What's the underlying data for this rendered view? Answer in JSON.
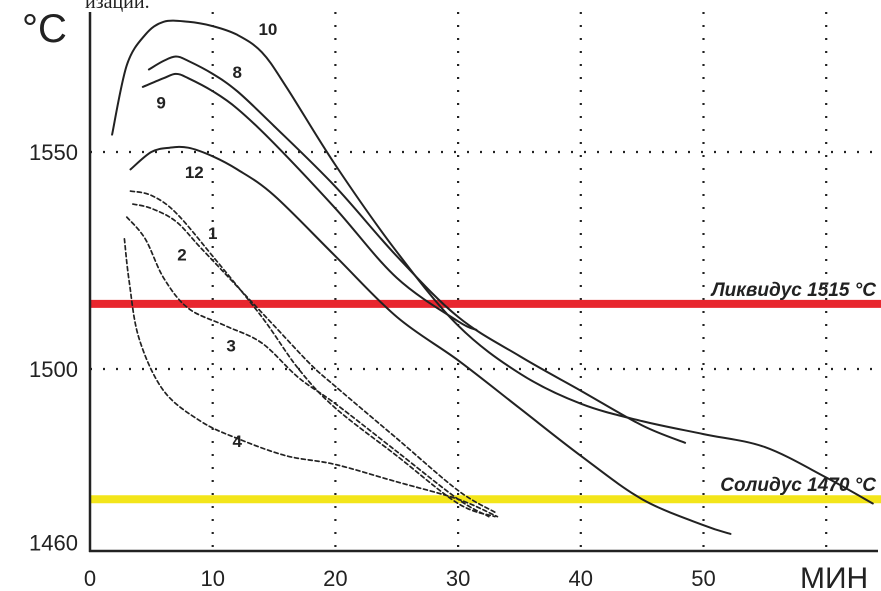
{
  "top_fragment": "изации.",
  "chart_data": {
    "type": "line",
    "title": "",
    "xlabel": "МИН",
    "ylabel": "°C",
    "xlim": [
      0,
      64
    ],
    "ylim": [
      1455,
      1585
    ],
    "grid": true,
    "x_ticks": [
      0,
      10,
      20,
      30,
      40,
      50
    ],
    "x_tick_labels": [
      "0",
      "10",
      "20",
      "30",
      "40",
      "50"
    ],
    "y_ticks": [
      1460,
      1500,
      1550
    ],
    "y_tick_labels": [
      "1460",
      "1500",
      "1550"
    ],
    "x_grid": [
      10,
      20,
      30,
      40,
      50,
      60
    ],
    "y_grid": [
      1500,
      1550
    ],
    "reference_lines": [
      {
        "label": "Ликвидус 1515 °C",
        "y": 1515,
        "color": "#e8262e"
      },
      {
        "label": "Солидус 1470 °C",
        "y": 1470,
        "color": "#f3e51a"
      }
    ],
    "series": [
      {
        "name": "10",
        "style": "solid",
        "x": [
          1.8,
          3,
          4.5,
          6,
          8,
          10,
          12,
          14,
          16,
          20,
          25,
          30,
          35,
          40,
          45,
          50,
          55,
          60,
          63.8
        ],
        "y": [
          1554,
          1570,
          1577,
          1580,
          1580,
          1579,
          1577,
          1573,
          1565,
          1547,
          1527,
          1510,
          1499,
          1492,
          1488,
          1485,
          1482,
          1475,
          1469
        ]
      },
      {
        "name": "8",
        "style": "solid",
        "x": [
          4.8,
          6,
          7,
          8,
          10,
          12,
          15,
          20,
          25,
          30,
          35,
          40,
          45,
          48.5
        ],
        "y": [
          1569,
          1571,
          1572,
          1571,
          1568,
          1564,
          1556,
          1542,
          1526,
          1512,
          1503,
          1495,
          1487,
          1483
        ]
      },
      {
        "name": "9",
        "style": "solid",
        "x": [
          4.3,
          6,
          7,
          8,
          10,
          12,
          15,
          20,
          25,
          30,
          31.5
        ],
        "y": [
          1565,
          1567,
          1568,
          1567,
          1564,
          1560,
          1552,
          1537,
          1521,
          1511,
          1509
        ]
      },
      {
        "name": "12",
        "style": "solid",
        "x": [
          3.3,
          5,
          6.5,
          8,
          10,
          12,
          15,
          20,
          25,
          30,
          35,
          40,
          45,
          50,
          52.2
        ],
        "y": [
          1546,
          1550,
          1551,
          1551,
          1549,
          1546,
          1540,
          1526,
          1512,
          1502,
          1491,
          1480,
          1470,
          1464,
          1462
        ]
      },
      {
        "name": "1",
        "style": "dashed",
        "x": [
          3.5,
          5,
          7,
          9,
          12,
          15,
          18,
          20,
          25,
          30,
          33
        ],
        "y": [
          1538,
          1537,
          1534,
          1528,
          1519,
          1510,
          1501,
          1496,
          1484,
          1472,
          1467
        ]
      },
      {
        "name": "2",
        "style": "dashed",
        "x": [
          3.3,
          5,
          7,
          10,
          14,
          17,
          20,
          25,
          30,
          33
        ],
        "y": [
          1541,
          1540,
          1536,
          1526,
          1512,
          1500,
          1491,
          1480,
          1469,
          1466
        ]
      },
      {
        "name": "3",
        "style": "dashed",
        "x": [
          3,
          4.5,
          6,
          8,
          11,
          14,
          17,
          20,
          25,
          30,
          32.5
        ],
        "y": [
          1535,
          1530,
          1521,
          1514,
          1510,
          1506,
          1498,
          1492,
          1481,
          1470,
          1466
        ]
      },
      {
        "name": "4",
        "style": "dashed",
        "x": [
          2.8,
          3.2,
          4,
          6,
          9,
          12,
          16,
          20,
          25,
          30,
          33.2
        ],
        "y": [
          1530,
          1520,
          1507,
          1495,
          1488,
          1484,
          1480,
          1478,
          1474,
          1470,
          1466
        ]
      }
    ],
    "curve_label_positions": [
      {
        "text": "10",
        "x": 14.5,
        "y": 1577
      },
      {
        "text": "8",
        "x": 12,
        "y": 1567
      },
      {
        "text": "9",
        "x": 5.8,
        "y": 1560
      },
      {
        "text": "12",
        "x": 8.5,
        "y": 1544
      },
      {
        "text": "1",
        "x": 10,
        "y": 1530
      },
      {
        "text": "2",
        "x": 7.5,
        "y": 1525
      },
      {
        "text": "3",
        "x": 11.5,
        "y": 1504
      },
      {
        "text": "4",
        "x": 12,
        "y": 1482
      }
    ],
    "colors": {
      "curve": "#222222",
      "grid": "#222222",
      "axis": "#222222"
    }
  }
}
